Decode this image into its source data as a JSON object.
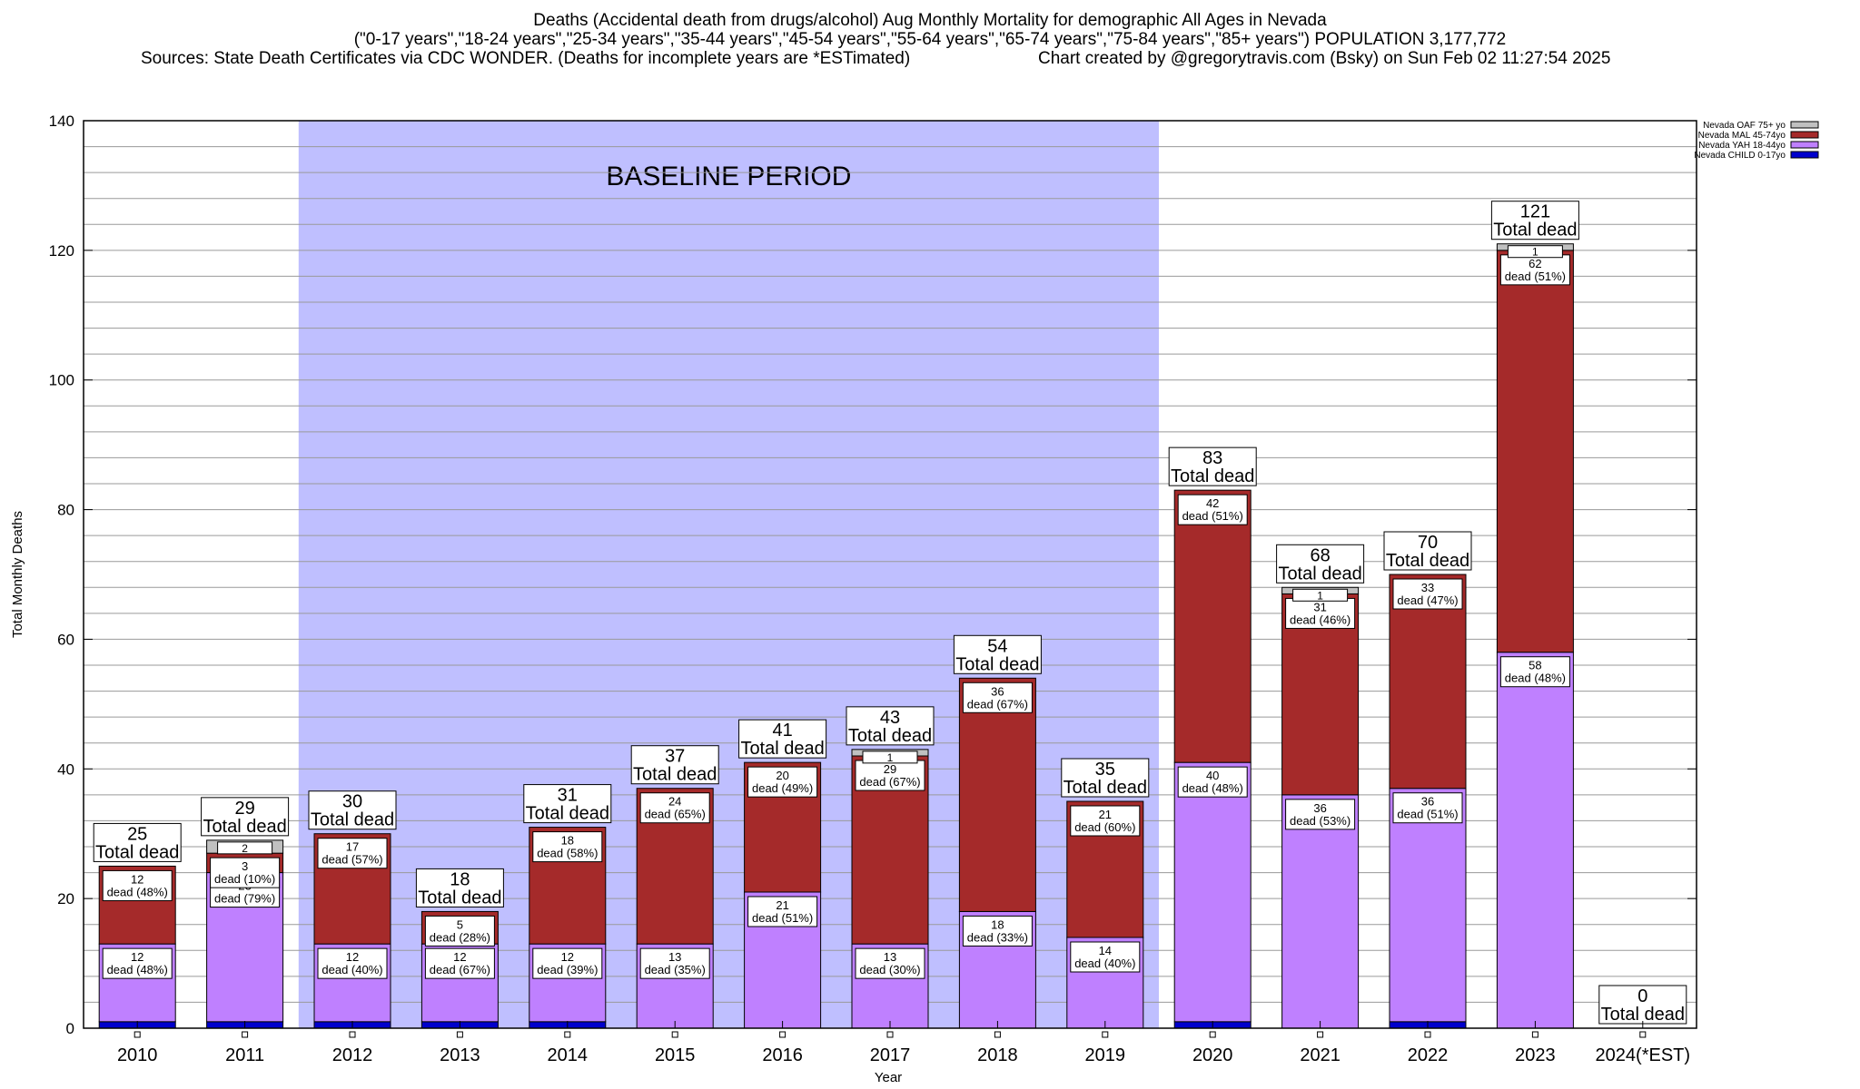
{
  "title": {
    "line1": "Deaths (Accidental death from drugs/alcohol) Aug Monthly Mortality for demographic All Ages in Nevada",
    "line2": "(\"0-17 years\",\"18-24 years\",\"25-34 years\",\"35-44 years\",\"45-54 years\",\"55-64 years\",\"65-74 years\",\"75-84 years\",\"85+ years\") POPULATION 3,177,772",
    "sources": "Sources: State Death Certificates via CDC WONDER. (Deaths for incomplete years are *ESTimated)",
    "credit": "Chart created by @gregorytravis.com (Bsky) on Sun Feb 02 11:27:54 2025"
  },
  "chart_data": {
    "type": "bar",
    "stacked": true,
    "categories": [
      "2010",
      "2011",
      "2012",
      "2013",
      "2014",
      "2015",
      "2016",
      "2017",
      "2018",
      "2019",
      "2020",
      "2021",
      "2022",
      "2023",
      "2024(*EST)"
    ],
    "totals": [
      25,
      29,
      30,
      18,
      31,
      37,
      41,
      43,
      54,
      35,
      83,
      68,
      70,
      121,
      0
    ],
    "total_label_suffix": "Total dead",
    "series": [
      {
        "name": "Nevada CHILD 0-17yo",
        "color": "#0000cc",
        "values": [
          1,
          1,
          1,
          1,
          1,
          0,
          0,
          0,
          0,
          0,
          1,
          0,
          1,
          0,
          0
        ]
      },
      {
        "name": "Nevada YAH 18-44yo",
        "color": "#bf80ff",
        "values": [
          12,
          23,
          12,
          12,
          12,
          13,
          21,
          13,
          18,
          14,
          40,
          36,
          36,
          58,
          0
        ]
      },
      {
        "name": "Nevada MAL 45-74yo",
        "color": "#a52a2a",
        "values": [
          12,
          3,
          17,
          5,
          18,
          24,
          20,
          29,
          36,
          21,
          42,
          31,
          33,
          62,
          0
        ]
      },
      {
        "name": "Nevada OAF 75+ yo",
        "color": "#c0c0c0",
        "values": [
          0,
          2,
          0,
          0,
          0,
          0,
          0,
          1,
          0,
          0,
          0,
          1,
          0,
          1,
          0
        ]
      }
    ],
    "segment_labels": {
      "yah": [
        "12\ndead (48%)",
        "23\ndead (79%)",
        "12\ndead (40%)",
        "12\ndead (67%)",
        "12\ndead (39%)",
        "13\ndead (35%)",
        "21\ndead (51%)",
        "13\ndead (30%)",
        "18\ndead (33%)",
        "14\ndead (40%)",
        "40\ndead (48%)",
        "36\ndead (53%)",
        "36\ndead (51%)",
        "58\ndead (48%)",
        ""
      ],
      "mal": [
        "12\ndead (48%)",
        "3\ndead (10%)",
        "17\ndead (57%)",
        "5\ndead (28%)",
        "18\ndead (58%)",
        "24\ndead (65%)",
        "20\ndead (49%)",
        "29\ndead (67%)",
        "36\ndead (67%)",
        "21\ndead (60%)",
        "42\ndead (51%)",
        "31\ndead (46%)",
        "33\ndead (47%)",
        "62\ndead (51%)",
        ""
      ],
      "oaf": [
        "",
        "2",
        "",
        "",
        "",
        "",
        "",
        "1",
        "",
        "",
        "",
        "1",
        "",
        "1",
        ""
      ]
    },
    "xlabel": "Year",
    "ylabel": "Total Monthly Deaths",
    "ylim": [
      0,
      140
    ],
    "yticks": [
      0,
      20,
      40,
      60,
      80,
      100,
      120,
      140
    ],
    "grid": true,
    "legend_position": "top-right",
    "baseline": {
      "label": "BASELINE PERIOD",
      "from": "2012",
      "to": "2019",
      "color": "#bfbfff"
    }
  }
}
